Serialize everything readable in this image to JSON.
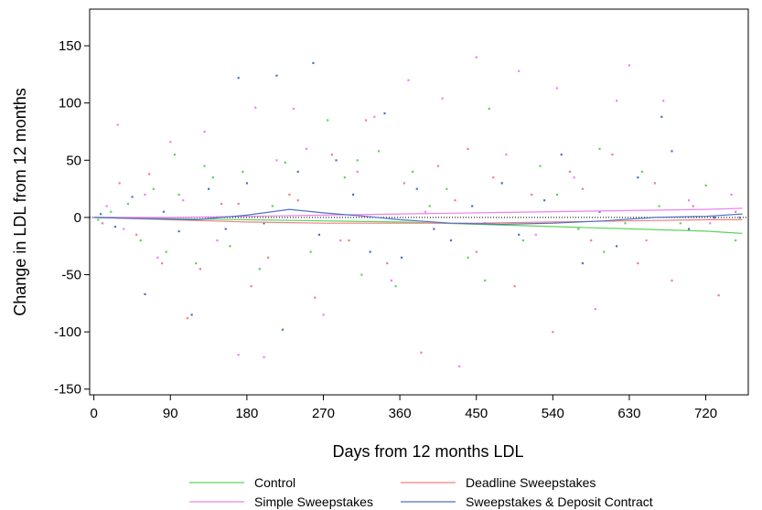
{
  "chart_data": {
    "type": "scatter",
    "title": "",
    "xlabel": "Days from 12 months LDL",
    "ylabel": "Change in LDL from 12 months",
    "xlim": [
      -5,
      770
    ],
    "ylim": [
      -155,
      182
    ],
    "x_ticks": [
      0,
      90,
      180,
      270,
      360,
      450,
      540,
      630,
      720
    ],
    "y_ticks": [
      -150,
      -100,
      -50,
      0,
      50,
      100,
      150
    ],
    "grid": false,
    "zero_line": {
      "y": 0,
      "style": "dotted"
    },
    "legend_position": "bottom",
    "series": [
      {
        "name": "Control",
        "color": "#5fd35f",
        "fit_line": [
          [
            0,
            0
          ],
          [
            90,
            -1
          ],
          [
            180,
            -2
          ],
          [
            270,
            -3
          ],
          [
            360,
            -4
          ],
          [
            450,
            -6
          ],
          [
            540,
            -8
          ],
          [
            630,
            -10
          ],
          [
            720,
            -12
          ],
          [
            763,
            -14
          ]
        ],
        "points": [
          [
            5,
            -2
          ],
          [
            20,
            5
          ],
          [
            40,
            12
          ],
          [
            55,
            -20
          ],
          [
            70,
            25
          ],
          [
            85,
            -30
          ],
          [
            100,
            20
          ],
          [
            120,
            -40
          ],
          [
            140,
            35
          ],
          [
            160,
            -25
          ],
          [
            175,
            40
          ],
          [
            195,
            -45
          ],
          [
            210,
            10
          ],
          [
            225,
            48
          ],
          [
            255,
            -30
          ],
          [
            275,
            85
          ],
          [
            295,
            35
          ],
          [
            315,
            -50
          ],
          [
            335,
            58
          ],
          [
            355,
            -60
          ],
          [
            375,
            40
          ],
          [
            395,
            10
          ],
          [
            415,
            25
          ],
          [
            440,
            -35
          ],
          [
            465,
            95
          ],
          [
            480,
            30
          ],
          [
            505,
            -20
          ],
          [
            525,
            45
          ],
          [
            545,
            20
          ],
          [
            570,
            -10
          ],
          [
            595,
            60
          ],
          [
            625,
            -5
          ],
          [
            645,
            40
          ],
          [
            665,
            10
          ],
          [
            690,
            -5
          ],
          [
            720,
            28
          ],
          [
            755,
            -20
          ],
          [
            95,
            55
          ],
          [
            130,
            45
          ],
          [
            310,
            50
          ],
          [
            460,
            -55
          ],
          [
            600,
            -30
          ]
        ]
      },
      {
        "name": "Deadline Sweepstakes",
        "color": "#f08080",
        "fit_line": [
          [
            0,
            0
          ],
          [
            90,
            -2
          ],
          [
            180,
            -4
          ],
          [
            270,
            -5
          ],
          [
            360,
            -5
          ],
          [
            450,
            -5
          ],
          [
            540,
            -4
          ],
          [
            630,
            -3
          ],
          [
            720,
            -2
          ],
          [
            763,
            -2
          ]
        ],
        "points": [
          [
            10,
            -5
          ],
          [
            30,
            30
          ],
          [
            50,
            -15
          ],
          [
            65,
            38
          ],
          [
            80,
            -40
          ],
          [
            110,
            -88
          ],
          [
            125,
            -45
          ],
          [
            150,
            12
          ],
          [
            185,
            -60
          ],
          [
            205,
            -35
          ],
          [
            230,
            20
          ],
          [
            260,
            -70
          ],
          [
            280,
            55
          ],
          [
            300,
            -20
          ],
          [
            320,
            85
          ],
          [
            345,
            -40
          ],
          [
            365,
            30
          ],
          [
            385,
            -118
          ],
          [
            405,
            45
          ],
          [
            425,
            15
          ],
          [
            450,
            -30
          ],
          [
            470,
            35
          ],
          [
            495,
            -60
          ],
          [
            515,
            20
          ],
          [
            540,
            -100
          ],
          [
            560,
            40
          ],
          [
            585,
            -20
          ],
          [
            610,
            55
          ],
          [
            640,
            -40
          ],
          [
            660,
            30
          ],
          [
            680,
            -55
          ],
          [
            705,
            10
          ],
          [
            735,
            -68
          ],
          [
            755,
            5
          ],
          [
            170,
            12
          ],
          [
            240,
            15
          ],
          [
            440,
            60
          ],
          [
            575,
            25
          ]
        ]
      },
      {
        "name": "Simple Sweepstakes",
        "color": "#ee82ee",
        "fit_line": [
          [
            0,
            0
          ],
          [
            90,
            0
          ],
          [
            180,
            1
          ],
          [
            270,
            2
          ],
          [
            360,
            3
          ],
          [
            450,
            4
          ],
          [
            540,
            5
          ],
          [
            630,
            6
          ],
          [
            720,
            7
          ],
          [
            763,
            8
          ]
        ],
        "points": [
          [
            15,
            10
          ],
          [
            35,
            -10
          ],
          [
            60,
            20
          ],
          [
            75,
            -35
          ],
          [
            90,
            66
          ],
          [
            105,
            15
          ],
          [
            130,
            75
          ],
          [
            145,
            -20
          ],
          [
            170,
            -120
          ],
          [
            190,
            96
          ],
          [
            200,
            -122
          ],
          [
            215,
            50
          ],
          [
            235,
            95
          ],
          [
            250,
            60
          ],
          [
            270,
            -85
          ],
          [
            290,
            -20
          ],
          [
            310,
            40
          ],
          [
            330,
            88
          ],
          [
            350,
            -55
          ],
          [
            370,
            120
          ],
          [
            390,
            5
          ],
          [
            410,
            104
          ],
          [
            430,
            -130
          ],
          [
            450,
            140
          ],
          [
            485,
            55
          ],
          [
            500,
            128
          ],
          [
            520,
            -15
          ],
          [
            545,
            113
          ],
          [
            565,
            35
          ],
          [
            590,
            -80
          ],
          [
            615,
            102
          ],
          [
            630,
            133
          ],
          [
            650,
            -20
          ],
          [
            670,
            102
          ],
          [
            700,
            15
          ],
          [
            725,
            -5
          ],
          [
            750,
            20
          ],
          [
            28,
            81
          ]
        ]
      },
      {
        "name": "Sweepstakes & Deposit Contract",
        "color": "#4f72c7",
        "fit_line": [
          [
            0,
            0
          ],
          [
            60,
            -1
          ],
          [
            120,
            -2
          ],
          [
            180,
            2
          ],
          [
            230,
            7
          ],
          [
            270,
            4
          ],
          [
            320,
            1
          ],
          [
            360,
            -2
          ],
          [
            420,
            -5
          ],
          [
            480,
            -6
          ],
          [
            540,
            -5
          ],
          [
            600,
            -3
          ],
          [
            660,
            0
          ],
          [
            720,
            1
          ],
          [
            763,
            3
          ]
        ],
        "points": [
          [
            8,
            3
          ],
          [
            25,
            -8
          ],
          [
            45,
            18
          ],
          [
            60,
            -67
          ],
          [
            82,
            5
          ],
          [
            100,
            -12
          ],
          [
            115,
            -85
          ],
          [
            135,
            25
          ],
          [
            155,
            -10
          ],
          [
            170,
            122
          ],
          [
            180,
            30
          ],
          [
            200,
            -5
          ],
          [
            215,
            124
          ],
          [
            222,
            -98
          ],
          [
            240,
            40
          ],
          [
            258,
            135
          ],
          [
            265,
            -15
          ],
          [
            285,
            50
          ],
          [
            305,
            20
          ],
          [
            325,
            -30
          ],
          [
            342,
            91
          ],
          [
            362,
            -35
          ],
          [
            380,
            25
          ],
          [
            400,
            -10
          ],
          [
            420,
            -20
          ],
          [
            445,
            10
          ],
          [
            460,
            -5
          ],
          [
            480,
            30
          ],
          [
            500,
            -15
          ],
          [
            530,
            15
          ],
          [
            550,
            55
          ],
          [
            575,
            -40
          ],
          [
            595,
            5
          ],
          [
            615,
            -25
          ],
          [
            640,
            35
          ],
          [
            668,
            88
          ],
          [
            680,
            58
          ],
          [
            700,
            -10
          ],
          [
            730,
            0
          ],
          [
            760,
            0
          ]
        ]
      }
    ]
  }
}
